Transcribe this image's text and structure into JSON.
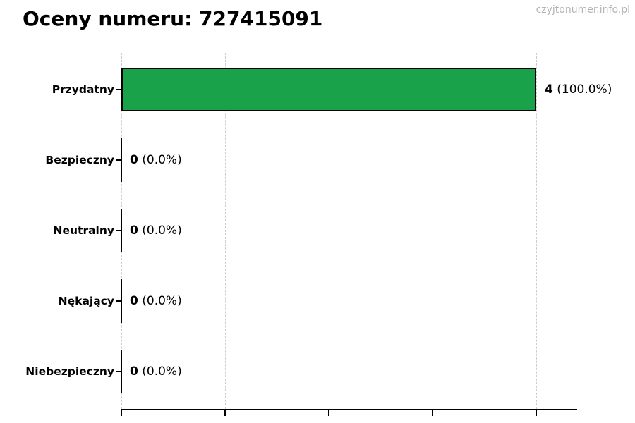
{
  "page": {
    "watermark": "czyjtonumer.info.pl"
  },
  "chart_data": {
    "type": "bar",
    "orientation": "horizontal",
    "title": "Oceny numeru: 727415091",
    "categories": [
      "Przydatny",
      "Bezpieczny",
      "Neutralny",
      "Nękający",
      "Niebezpieczny"
    ],
    "values": [
      4,
      0,
      0,
      0,
      0
    ],
    "percentages": [
      100.0,
      0.0,
      0.0,
      0.0,
      0.0
    ],
    "value_labels": [
      "4 (100.0%)",
      "0 (0.0%)",
      "0 (0.0%)",
      "0 (0.0%)",
      "0 (0.0%)"
    ],
    "xlabel": "",
    "ylabel": "",
    "xlim": [
      0,
      4.4
    ],
    "x_gridlines": [
      0,
      1,
      2,
      3,
      4
    ],
    "grid": true,
    "gridline_style": "dashed",
    "legend": "none",
    "bar_color": "#1aa24a",
    "bar_edge_color": "#000000",
    "gridline_color": "#cccccc",
    "axis_color": "#000000",
    "text_color": "#000000",
    "watermark": "czyjtonumer.info.pl",
    "watermark_color": "#b3b3b3"
  }
}
